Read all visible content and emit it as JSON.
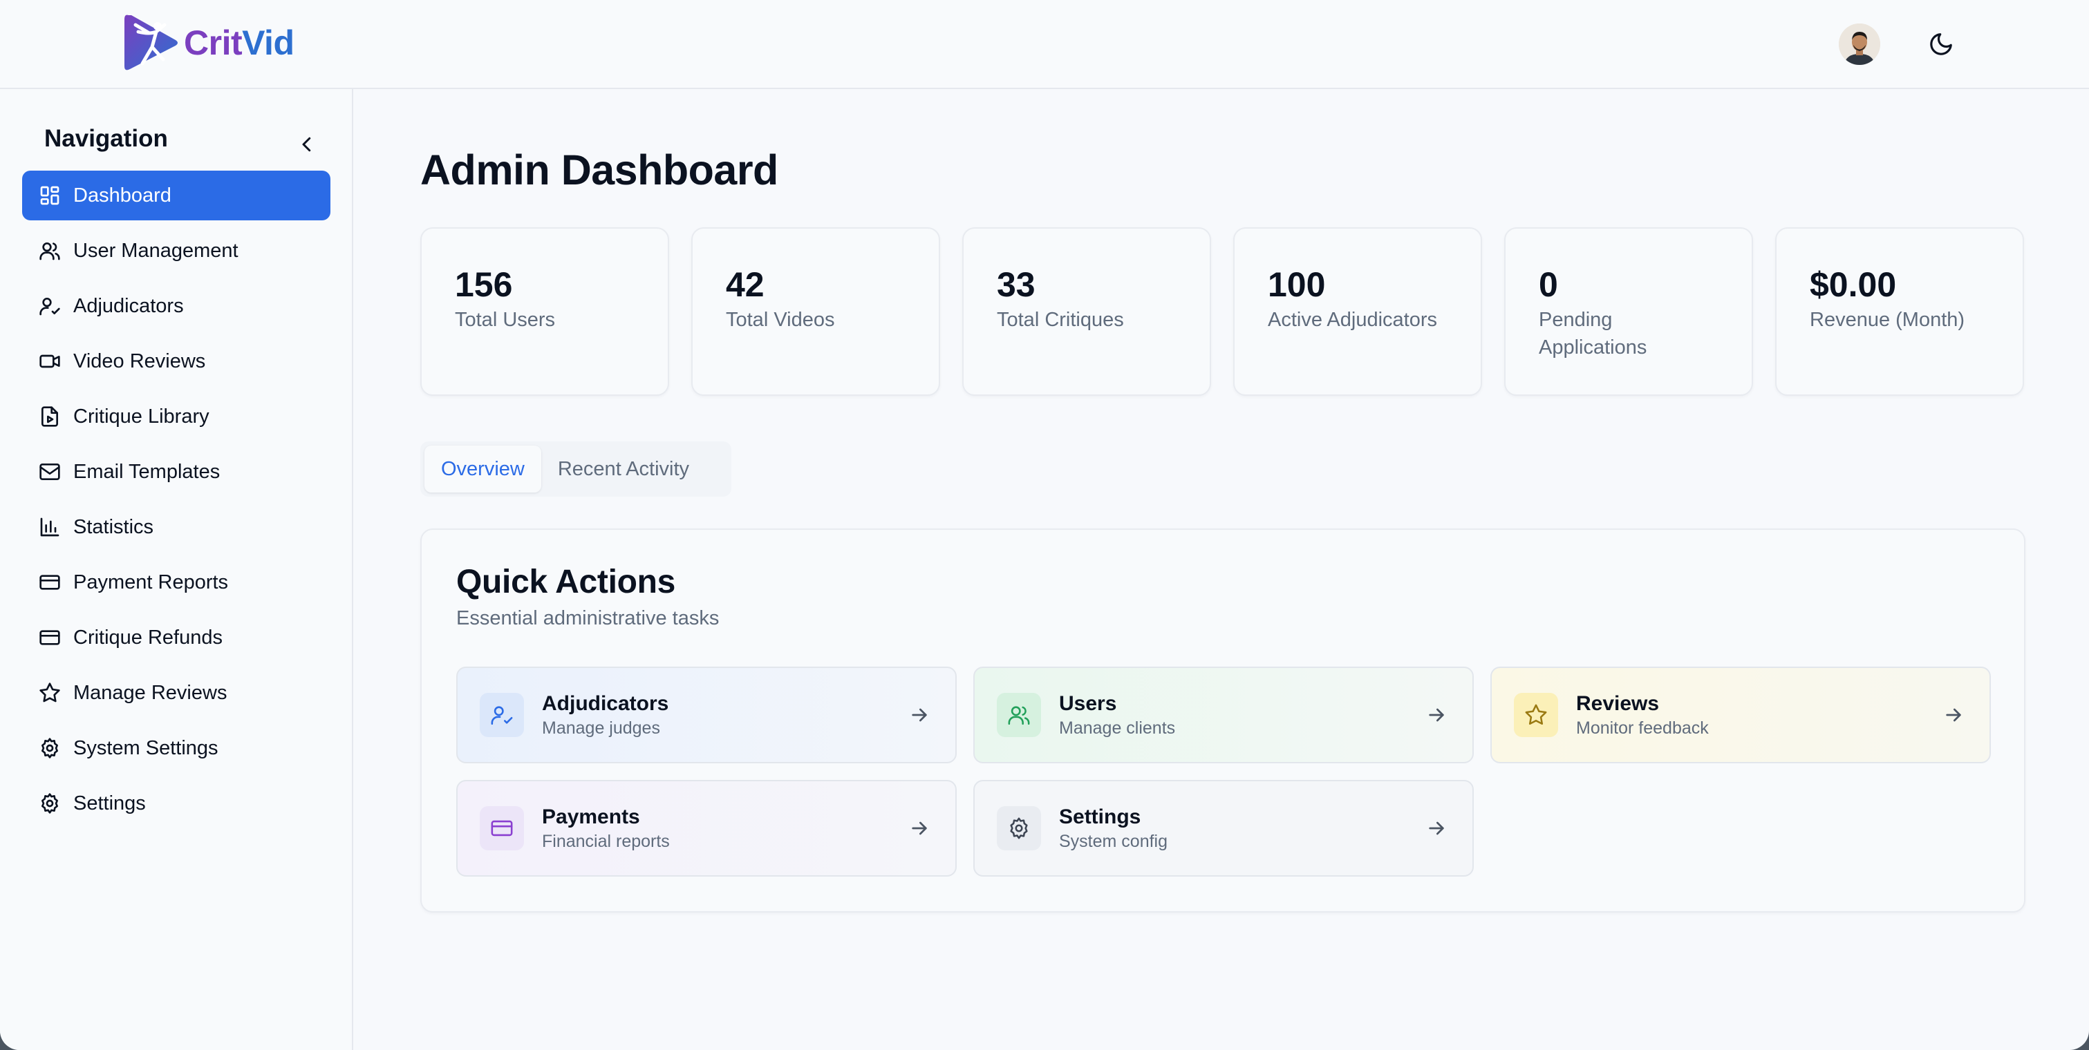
{
  "brand": {
    "name_part1": "Crit",
    "name_part2": "Vid",
    "accent": "#2b6be6",
    "logo_purple": "#7b3fbf",
    "logo_blue": "#2d6fd0"
  },
  "header": {
    "avatar_icon": "user-avatar",
    "theme_icon": "moon-icon"
  },
  "sidebar": {
    "title": "Navigation",
    "collapse_icon": "chevron-left-icon",
    "items": [
      {
        "label": "Dashboard",
        "icon": "dashboard-grid-icon",
        "active": true
      },
      {
        "label": "User Management",
        "icon": "users-icon"
      },
      {
        "label": "Adjudicators",
        "icon": "user-check-icon"
      },
      {
        "label": "Video Reviews",
        "icon": "video-icon"
      },
      {
        "label": "Critique Library",
        "icon": "file-video-icon"
      },
      {
        "label": "Email Templates",
        "icon": "mail-icon"
      },
      {
        "label": "Statistics",
        "icon": "bar-chart-icon"
      },
      {
        "label": "Payment Reports",
        "icon": "credit-card-icon"
      },
      {
        "label": "Critique Refunds",
        "icon": "credit-card-icon"
      },
      {
        "label": "Manage Reviews",
        "icon": "star-icon"
      },
      {
        "label": "System Settings",
        "icon": "gear-icon"
      },
      {
        "label": "Settings",
        "icon": "gear-icon"
      }
    ]
  },
  "main": {
    "title": "Admin Dashboard",
    "stats": [
      {
        "value": "156",
        "label": "Total Users"
      },
      {
        "value": "42",
        "label": "Total Videos"
      },
      {
        "value": "33",
        "label": "Total Critiques"
      },
      {
        "value": "100",
        "label": "Active Adjudicators"
      },
      {
        "value": "0",
        "label": "Pending Applications"
      },
      {
        "value": "$0.00",
        "label": "Revenue (Month)"
      }
    ],
    "tabs": [
      {
        "label": "Overview",
        "active": true
      },
      {
        "label": "Recent Activity",
        "active": false
      }
    ],
    "quick_actions": {
      "title": "Quick Actions",
      "subtitle": "Essential administrative tasks",
      "items": [
        {
          "title": "Adjudicators",
          "subtitle": "Manage judges",
          "icon": "user-check-icon",
          "color": "#2b6be6"
        },
        {
          "title": "Users",
          "subtitle": "Manage clients",
          "icon": "users-icon",
          "color": "#22a05a"
        },
        {
          "title": "Reviews",
          "subtitle": "Monitor feedback",
          "icon": "star-icon",
          "color": "#9a7a12"
        },
        {
          "title": "Payments",
          "subtitle": "Financial reports",
          "icon": "credit-card-icon",
          "color": "#8a3fd0"
        },
        {
          "title": "Settings",
          "subtitle": "System config",
          "icon": "gear-icon",
          "color": "#3c4452"
        }
      ]
    }
  }
}
